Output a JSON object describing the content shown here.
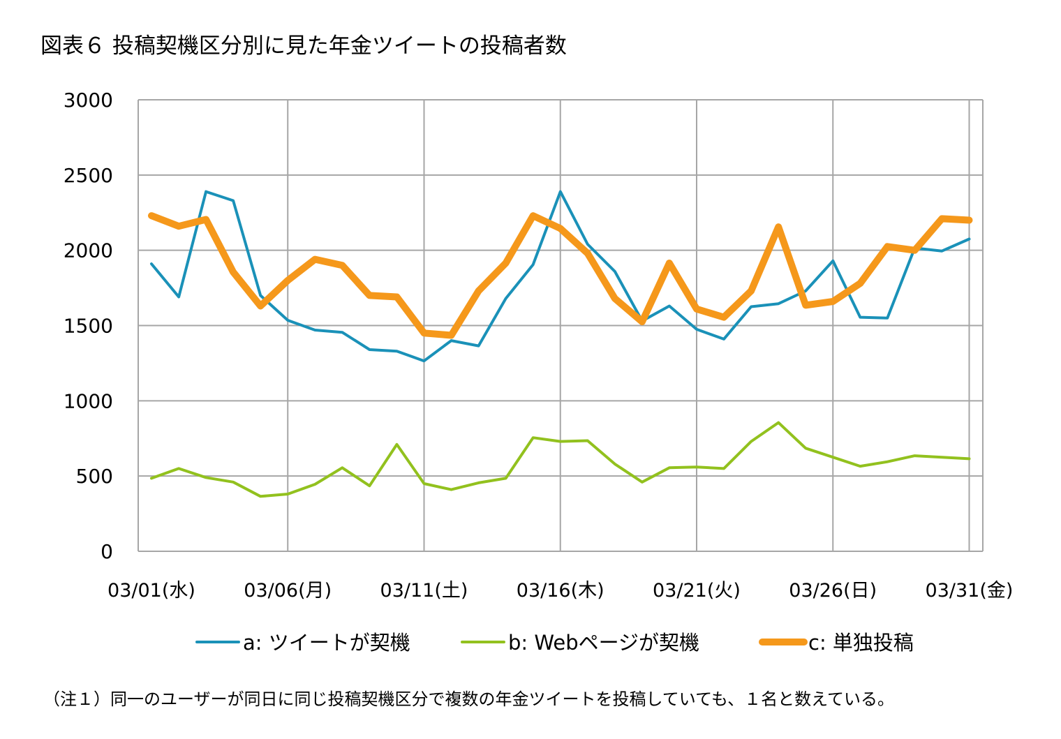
{
  "title": "図表６ 投稿契機区分別に見た年金ツイートの投稿者数",
  "note": "（注１）同一のユーザーが同日に同じ投稿契機区分で複数の年金ツイートを投稿していても、１名と数えている。",
  "chart_data": {
    "type": "line",
    "title": "図表６ 投稿契機区分別に見た年金ツイートの投稿者数",
    "xlabel": "",
    "ylabel": "",
    "ylim": [
      0,
      3000
    ],
    "yticks": [
      "0",
      "500",
      "1000",
      "1500",
      "2000",
      "2500",
      "3000"
    ],
    "grid": true,
    "legend_position": "bottom",
    "x_tick_labels": [
      "03/01(水)",
      "03/06(月)",
      "03/11(土)",
      "03/16(木)",
      "03/21(火)",
      "03/26(日)",
      "03/31(金)"
    ],
    "x": [
      "03/01",
      "03/02",
      "03/03",
      "03/04",
      "03/05",
      "03/06",
      "03/07",
      "03/08",
      "03/09",
      "03/10",
      "03/11",
      "03/12",
      "03/13",
      "03/14",
      "03/15",
      "03/16",
      "03/17",
      "03/18",
      "03/19",
      "03/20",
      "03/21",
      "03/22",
      "03/23",
      "03/24",
      "03/25",
      "03/26",
      "03/27",
      "03/28",
      "03/29",
      "03/30",
      "03/31"
    ],
    "series": [
      {
        "name": "a: ツイートが契機",
        "color": "#1a91b8",
        "values": [
          1910,
          1690,
          2390,
          2330,
          1700,
          1535,
          1470,
          1455,
          1340,
          1330,
          1265,
          1400,
          1365,
          1680,
          1905,
          2390,
          2040,
          1860,
          1530,
          1630,
          1475,
          1410,
          1625,
          1645,
          1730,
          1930,
          1555,
          1550,
          2015,
          1995,
          2075
        ]
      },
      {
        "name": "b: Webページが契機",
        "color": "#92c11e",
        "values": [
          485,
          550,
          490,
          460,
          365,
          380,
          445,
          555,
          435,
          710,
          450,
          410,
          455,
          485,
          755,
          730,
          735,
          580,
          460,
          555,
          560,
          550,
          730,
          855,
          685,
          625,
          565,
          595,
          635,
          625,
          615
        ]
      },
      {
        "name": "c: 単独投稿",
        "color": "#f5981b",
        "values": [
          2230,
          2160,
          2205,
          1855,
          1630,
          1800,
          1940,
          1900,
          1700,
          1690,
          1450,
          1435,
          1730,
          1915,
          2230,
          2145,
          1980,
          1680,
          1525,
          1915,
          1610,
          1555,
          1730,
          2155,
          1635,
          1660,
          1780,
          2025,
          2000,
          2210,
          2200
        ]
      }
    ]
  }
}
